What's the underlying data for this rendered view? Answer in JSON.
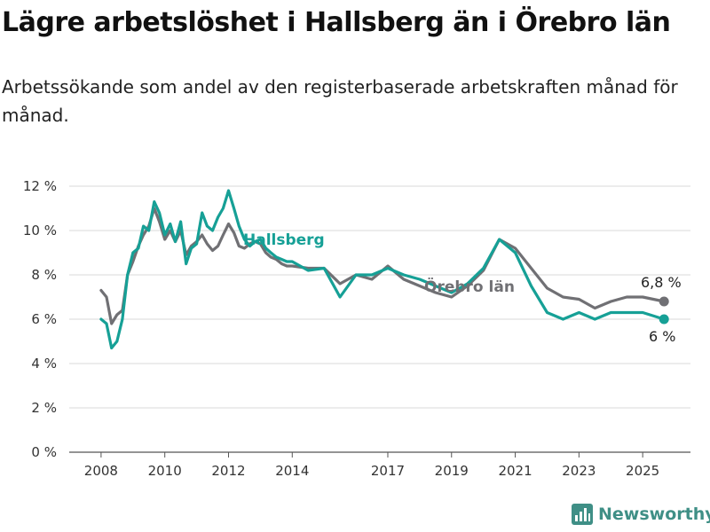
{
  "title": "Lägre arbetslöshet i Hallsberg än i Örebro län",
  "subtitle": "Arbetssökande som andel av den registerbaserade arbetskraften månad för månad.",
  "brand": "Newsworthy",
  "colors": {
    "hallsberg": "#16a096",
    "orebro": "#707074",
    "grid": "#d9d9d9",
    "axis": "#555555"
  },
  "chart_data": {
    "type": "line",
    "y_tick_labels": [
      "0 %",
      "2 %",
      "4 %",
      "6 %",
      "8 %",
      "10 %",
      "12 %"
    ],
    "y_ticks": [
      0,
      2,
      4,
      6,
      8,
      10,
      12
    ],
    "x_tick_labels": [
      "2008",
      "2010",
      "2012",
      "2014",
      "2017",
      "2019",
      "2021",
      "2023",
      "2025"
    ],
    "x_ticks": [
      2008.0,
      2010.0,
      2012.0,
      2014.0,
      2017.0,
      2019.0,
      2021.0,
      2023.0,
      2025.0
    ],
    "xlim": [
      2007.0,
      2026.5
    ],
    "ylim": [
      0,
      12
    ],
    "grid": true,
    "series": [
      {
        "name": "Hallsberg",
        "end_label": "6 %",
        "x": [
          2008.0,
          2008.17,
          2008.33,
          2008.5,
          2008.67,
          2008.83,
          2009.0,
          2009.17,
          2009.33,
          2009.5,
          2009.67,
          2009.83,
          2010.0,
          2010.17,
          2010.33,
          2010.5,
          2010.67,
          2010.83,
          2011.0,
          2011.17,
          2011.33,
          2011.5,
          2011.67,
          2011.83,
          2012.0,
          2012.17,
          2012.33,
          2012.5,
          2012.67,
          2012.83,
          2013.0,
          2013.17,
          2013.33,
          2013.5,
          2013.67,
          2013.83,
          2014.0,
          2014.5,
          2015.0,
          2015.5,
          2016.0,
          2016.5,
          2017.0,
          2017.5,
          2018.0,
          2018.5,
          2019.0,
          2019.5,
          2020.0,
          2020.5,
          2021.0,
          2021.5,
          2022.0,
          2022.5,
          2023.0,
          2023.5,
          2024.0,
          2024.5,
          2025.0,
          2025.67
        ],
        "y": [
          6.0,
          5.8,
          4.7,
          5.0,
          6.0,
          8.0,
          9.0,
          9.2,
          10.2,
          10.0,
          11.3,
          10.8,
          9.8,
          10.3,
          9.5,
          10.4,
          8.5,
          9.2,
          9.4,
          10.8,
          10.2,
          10.0,
          10.6,
          11.0,
          11.8,
          11.0,
          10.2,
          9.6,
          9.3,
          9.5,
          9.6,
          9.2,
          9.0,
          8.8,
          8.7,
          8.6,
          8.6,
          8.2,
          8.3,
          7.0,
          8.0,
          8.0,
          8.3,
          8.0,
          7.8,
          7.5,
          7.2,
          7.6,
          8.3,
          9.6,
          9.0,
          7.5,
          6.3,
          6.0,
          6.3,
          6.0,
          6.3,
          6.3,
          6.3,
          6.0
        ]
      },
      {
        "name": "Örebro län",
        "end_label": "6,8 %",
        "x": [
          2008.0,
          2008.17,
          2008.33,
          2008.5,
          2008.67,
          2008.83,
          2009.0,
          2009.17,
          2009.33,
          2009.5,
          2009.67,
          2009.83,
          2010.0,
          2010.17,
          2010.33,
          2010.5,
          2010.67,
          2010.83,
          2011.0,
          2011.17,
          2011.33,
          2011.5,
          2011.67,
          2011.83,
          2012.0,
          2012.17,
          2012.33,
          2012.5,
          2012.67,
          2012.83,
          2013.0,
          2013.17,
          2013.33,
          2013.5,
          2013.67,
          2013.83,
          2014.0,
          2014.5,
          2015.0,
          2015.5,
          2016.0,
          2016.5,
          2017.0,
          2017.5,
          2018.0,
          2018.5,
          2019.0,
          2019.5,
          2020.0,
          2020.5,
          2021.0,
          2021.5,
          2022.0,
          2022.5,
          2023.0,
          2023.5,
          2024.0,
          2024.5,
          2025.0,
          2025.67
        ],
        "y": [
          7.3,
          7.0,
          5.8,
          6.2,
          6.4,
          8.0,
          8.6,
          9.3,
          9.8,
          10.2,
          11.0,
          10.4,
          9.6,
          10.0,
          9.5,
          10.0,
          8.9,
          9.3,
          9.5,
          9.8,
          9.4,
          9.1,
          9.3,
          9.8,
          10.3,
          9.9,
          9.3,
          9.2,
          9.4,
          9.5,
          9.4,
          9.0,
          8.8,
          8.7,
          8.5,
          8.4,
          8.4,
          8.3,
          8.3,
          7.6,
          8.0,
          7.8,
          8.4,
          7.8,
          7.5,
          7.2,
          7.0,
          7.5,
          8.2,
          9.6,
          9.2,
          8.3,
          7.4,
          7.0,
          6.9,
          6.5,
          6.8,
          7.0,
          7.0,
          6.8
        ]
      }
    ]
  }
}
